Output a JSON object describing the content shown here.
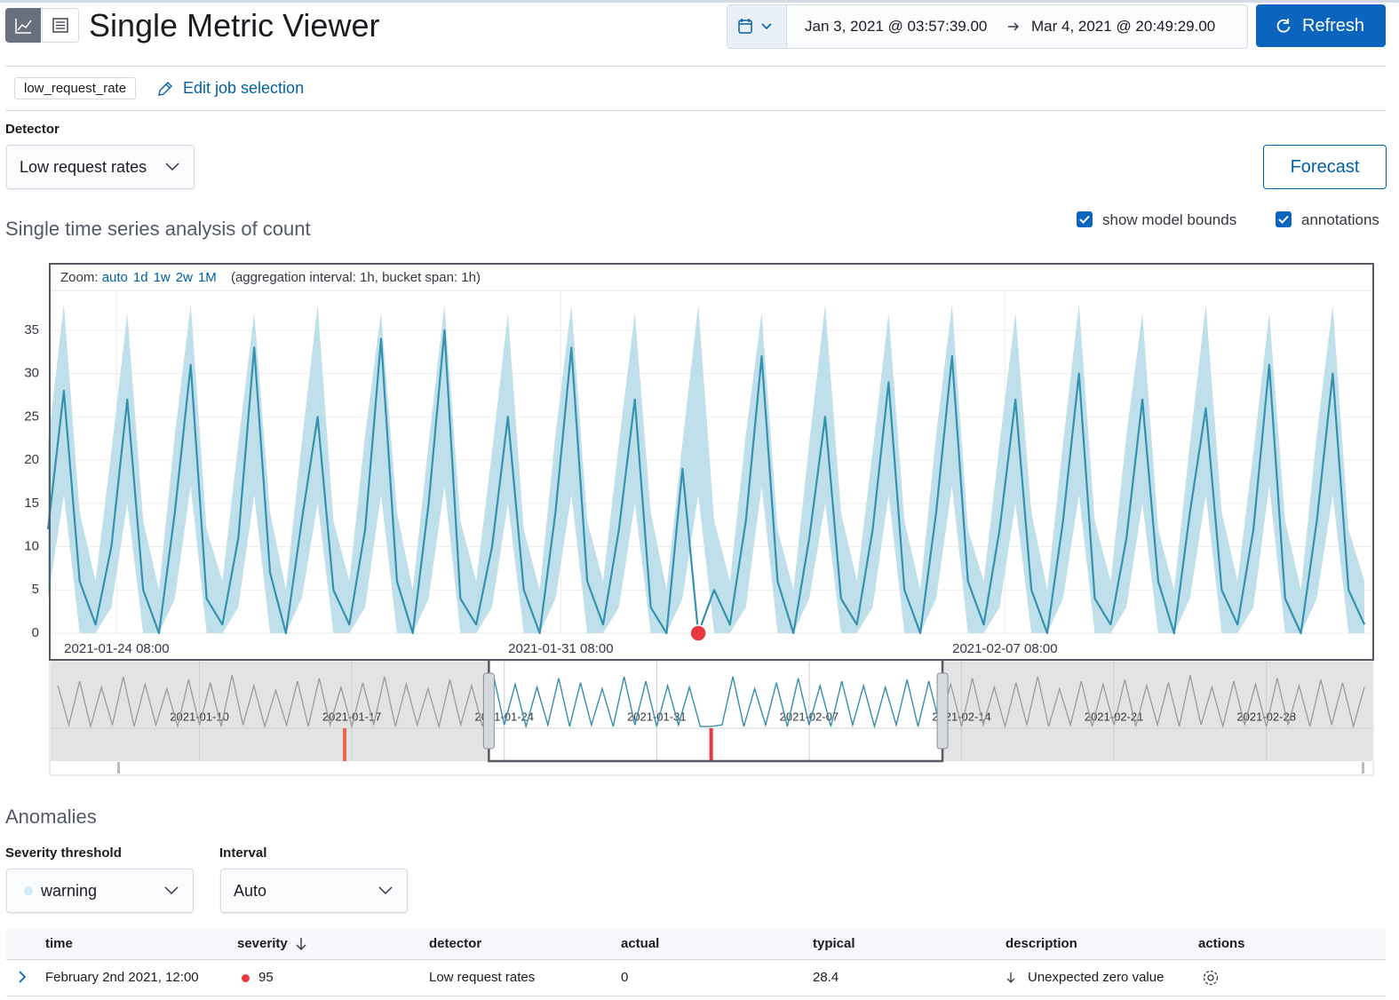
{
  "header": {
    "title": "Single Metric Viewer",
    "time_from": "Jan 3, 2021 @ 03:57:39.00",
    "time_to": "Mar 4, 2021 @ 20:49:29.00",
    "refresh": "Refresh"
  },
  "job": {
    "id": "low_request_rate",
    "edit": "Edit job selection"
  },
  "detector": {
    "label": "Detector",
    "value": "Low request rates"
  },
  "forecast": "Forecast",
  "chart_section": {
    "title": "Single time series analysis of count",
    "toggles": [
      {
        "label": "show model bounds",
        "checked": true
      },
      {
        "label": "annotations",
        "checked": true
      }
    ]
  },
  "zoom": {
    "label": "Zoom:",
    "options": [
      "auto",
      "1d",
      "1w",
      "2w",
      "1M"
    ],
    "note": "(aggregation interval: 1h, bucket span: 1h)"
  },
  "chart_data": [
    {
      "type": "line",
      "x": [
        "2021-01-23 06:00",
        "2021-01-23 12:00",
        "2021-01-23 18:00",
        "2021-01-24 00:00",
        "2021-01-24 06:00",
        "2021-01-24 12:00",
        "2021-01-24 18:00",
        "2021-01-25 00:00",
        "2021-01-25 06:00",
        "2021-01-25 12:00",
        "2021-01-25 18:00",
        "2021-01-26 00:00",
        "2021-01-26 06:00",
        "2021-01-26 12:00",
        "2021-01-26 18:00",
        "2021-01-27 00:00",
        "2021-01-27 06:00",
        "2021-01-27 12:00",
        "2021-01-27 18:00",
        "2021-01-28 00:00",
        "2021-01-28 06:00",
        "2021-01-28 12:00",
        "2021-01-28 18:00",
        "2021-01-29 00:00",
        "2021-01-29 06:00",
        "2021-01-29 12:00",
        "2021-01-29 18:00",
        "2021-01-30 00:00",
        "2021-01-30 06:00",
        "2021-01-30 12:00",
        "2021-01-30 18:00",
        "2021-01-31 00:00",
        "2021-01-31 06:00",
        "2021-01-31 12:00",
        "2021-01-31 18:00",
        "2021-02-01 00:00",
        "2021-02-01 06:00",
        "2021-02-01 12:00",
        "2021-02-01 18:00",
        "2021-02-02 00:00",
        "2021-02-02 06:00",
        "2021-02-02 12:00",
        "2021-02-02 18:00",
        "2021-02-03 00:00",
        "2021-02-03 06:00",
        "2021-02-03 12:00",
        "2021-02-03 18:00",
        "2021-02-04 00:00",
        "2021-02-04 06:00",
        "2021-02-04 12:00",
        "2021-02-04 18:00",
        "2021-02-05 00:00",
        "2021-02-05 06:00",
        "2021-02-05 12:00",
        "2021-02-05 18:00",
        "2021-02-06 00:00",
        "2021-02-06 06:00",
        "2021-02-06 12:00",
        "2021-02-06 18:00",
        "2021-02-07 00:00",
        "2021-02-07 06:00",
        "2021-02-07 12:00",
        "2021-02-07 18:00",
        "2021-02-08 00:00",
        "2021-02-08 06:00",
        "2021-02-08 12:00",
        "2021-02-08 18:00",
        "2021-02-09 00:00",
        "2021-02-09 06:00",
        "2021-02-09 12:00",
        "2021-02-09 18:00",
        "2021-02-10 00:00",
        "2021-02-10 06:00",
        "2021-02-10 12:00",
        "2021-02-10 18:00",
        "2021-02-11 00:00",
        "2021-02-11 06:00",
        "2021-02-11 12:00",
        "2021-02-11 18:00",
        "2021-02-12 00:00",
        "2021-02-12 06:00",
        "2021-02-12 12:00",
        "2021-02-12 18:00",
        "2021-02-13 00:00"
      ],
      "series": [
        {
          "color": "#3591b0",
          "bounds_color": "#bfe0ea",
          "values": [
            12,
            28,
            6,
            1,
            10,
            27,
            5,
            0,
            14,
            31,
            4,
            1,
            11,
            33,
            7,
            0,
            13,
            25,
            5,
            1,
            12,
            34,
            6,
            0,
            15,
            35,
            4,
            1,
            10,
            25,
            5,
            0,
            14,
            33,
            6,
            1,
            12,
            27,
            3,
            0,
            19,
            0,
            5,
            1,
            13,
            32,
            6,
            0,
            11,
            25,
            4,
            1,
            12,
            29,
            5,
            0,
            14,
            32,
            6,
            1,
            12,
            27,
            5,
            0,
            13,
            30,
            4,
            1,
            11,
            27,
            6,
            0,
            14,
            26,
            5,
            1,
            12,
            31,
            4,
            0,
            13,
            30,
            5,
            1
          ],
          "upper": [
            22,
            38,
            14,
            6,
            21,
            37,
            13,
            5,
            23,
            38,
            12,
            6,
            22,
            37,
            14,
            5,
            22,
            38,
            13,
            6,
            23,
            37,
            14,
            5,
            22,
            38,
            13,
            6,
            21,
            37,
            12,
            5,
            23,
            38,
            13,
            6,
            22,
            37,
            14,
            5,
            22,
            38,
            13,
            6,
            23,
            37,
            12,
            5,
            22,
            38,
            14,
            6,
            21,
            37,
            13,
            5,
            23,
            38,
            12,
            6,
            22,
            37,
            14,
            5,
            22,
            38,
            13,
            6,
            23,
            37,
            12,
            5,
            22,
            38,
            14,
            6,
            21,
            37,
            13,
            5,
            23,
            38,
            12,
            6
          ],
          "lower": [
            4,
            16,
            0,
            0,
            3,
            15,
            0,
            0,
            4,
            17,
            0,
            0,
            3,
            16,
            0,
            0,
            4,
            15,
            0,
            0,
            3,
            16,
            0,
            0,
            4,
            17,
            0,
            0,
            3,
            15,
            0,
            0,
            4,
            16,
            0,
            0,
            3,
            15,
            0,
            0,
            4,
            16,
            0,
            0,
            3,
            17,
            0,
            0,
            4,
            15,
            0,
            0,
            3,
            16,
            0,
            0,
            4,
            17,
            0,
            0,
            3,
            15,
            0,
            0,
            4,
            16,
            0,
            0,
            3,
            15,
            0,
            0,
            4,
            16,
            0,
            0,
            3,
            17,
            0,
            0,
            4,
            16,
            0,
            0
          ]
        }
      ],
      "anomalies": [
        {
          "x": "2021-02-02 12:00",
          "value": 0,
          "color": "#e7393f"
        }
      ],
      "xlim": [
        "2021-01-23 07:00",
        "2021-02-13 03:00"
      ],
      "xticks": [
        "2021-01-24 08:00",
        "2021-01-31 08:00",
        "2021-02-07 08:00"
      ],
      "ylim": [
        0,
        39.5
      ],
      "yticks": [
        0,
        5,
        10,
        15,
        20,
        25,
        30,
        35
      ],
      "grid": true
    },
    {
      "type": "line",
      "x": [
        "2021-01-03 12:00",
        "2021-01-04 00:00",
        "2021-01-04 12:00",
        "2021-01-05 00:00",
        "2021-01-05 12:00",
        "2021-01-06 00:00",
        "2021-01-06 12:00",
        "2021-01-07 00:00",
        "2021-01-07 12:00",
        "2021-01-08 00:00",
        "2021-01-08 12:00",
        "2021-01-09 00:00",
        "2021-01-09 12:00",
        "2021-01-10 00:00",
        "2021-01-10 12:00",
        "2021-01-11 00:00",
        "2021-01-11 12:00",
        "2021-01-12 00:00",
        "2021-01-12 12:00",
        "2021-01-13 00:00",
        "2021-01-13 12:00",
        "2021-01-14 00:00",
        "2021-01-14 12:00",
        "2021-01-15 00:00",
        "2021-01-15 12:00",
        "2021-01-16 00:00",
        "2021-01-16 12:00",
        "2021-01-17 00:00",
        "2021-01-17 12:00",
        "2021-01-18 00:00",
        "2021-01-18 12:00",
        "2021-01-19 00:00",
        "2021-01-19 12:00",
        "2021-01-20 00:00",
        "2021-01-20 12:00",
        "2021-01-21 00:00",
        "2021-01-21 12:00",
        "2021-01-22 00:00",
        "2021-01-22 12:00",
        "2021-01-23 00:00",
        "2021-01-23 12:00",
        "2021-01-24 00:00",
        "2021-01-24 12:00",
        "2021-01-25 00:00",
        "2021-01-25 12:00",
        "2021-01-26 00:00",
        "2021-01-26 12:00",
        "2021-01-27 00:00",
        "2021-01-27 12:00",
        "2021-01-28 00:00",
        "2021-01-28 12:00",
        "2021-01-29 00:00",
        "2021-01-29 12:00",
        "2021-01-30 00:00",
        "2021-01-30 12:00",
        "2021-01-31 00:00",
        "2021-01-31 12:00",
        "2021-02-01 00:00",
        "2021-02-01 12:00",
        "2021-02-02 00:00",
        "2021-02-02 12:00",
        "2021-02-03 00:00",
        "2021-02-03 12:00",
        "2021-02-04 00:00",
        "2021-02-04 12:00",
        "2021-02-05 00:00",
        "2021-02-05 12:00",
        "2021-02-06 00:00",
        "2021-02-06 12:00",
        "2021-02-07 00:00",
        "2021-02-07 12:00",
        "2021-02-08 00:00",
        "2021-02-08 12:00",
        "2021-02-09 00:00",
        "2021-02-09 12:00",
        "2021-02-10 00:00",
        "2021-02-10 12:00",
        "2021-02-11 00:00",
        "2021-02-11 12:00",
        "2021-02-12 00:00",
        "2021-02-12 12:00",
        "2021-02-13 00:00",
        "2021-02-13 12:00",
        "2021-02-14 00:00",
        "2021-02-14 12:00",
        "2021-02-15 00:00",
        "2021-02-15 12:00",
        "2021-02-16 00:00",
        "2021-02-16 12:00",
        "2021-02-17 00:00",
        "2021-02-17 12:00",
        "2021-02-18 00:00",
        "2021-02-18 12:00",
        "2021-02-19 00:00",
        "2021-02-19 12:00",
        "2021-02-20 00:00",
        "2021-02-20 12:00",
        "2021-02-21 00:00",
        "2021-02-21 12:00",
        "2021-02-22 00:00",
        "2021-02-22 12:00",
        "2021-02-23 00:00",
        "2021-02-23 12:00",
        "2021-02-24 00:00",
        "2021-02-24 12:00",
        "2021-02-25 00:00",
        "2021-02-25 12:00",
        "2021-02-26 00:00",
        "2021-02-26 12:00",
        "2021-02-27 00:00",
        "2021-02-27 12:00",
        "2021-02-28 00:00",
        "2021-02-28 12:00",
        "2021-03-01 00:00",
        "2021-03-01 12:00",
        "2021-03-02 00:00",
        "2021-03-02 12:00",
        "2021-03-03 00:00",
        "2021-03-03 12:00",
        "2021-03-04 00:00",
        "2021-03-04 12:00"
      ],
      "values": [
        27,
        1,
        30,
        0,
        26,
        1,
        33,
        0,
        28,
        1,
        25,
        0,
        31,
        1,
        29,
        0,
        34,
        1,
        27,
        0,
        24,
        1,
        30,
        0,
        32,
        1,
        26,
        0,
        29,
        1,
        33,
        0,
        28,
        1,
        25,
        0,
        31,
        1,
        27,
        0,
        34,
        1,
        28,
        0,
        26,
        1,
        32,
        0,
        29,
        1,
        25,
        0,
        33,
        1,
        30,
        0,
        27,
        1,
        26,
        0,
        0,
        1,
        33,
        0,
        25,
        1,
        29,
        0,
        32,
        1,
        27,
        0,
        30,
        1,
        27,
        0,
        26,
        1,
        31,
        0,
        30,
        1,
        28,
        0,
        32,
        1,
        26,
        0,
        29,
        1,
        33,
        0,
        25,
        1,
        30,
        0,
        28,
        1,
        31,
        0,
        27,
        1,
        29,
        0,
        34,
        1,
        26,
        0,
        30,
        1,
        28,
        0,
        32,
        1,
        27,
        0,
        31,
        1,
        29,
        0,
        26
      ],
      "color": "#9b9b9b",
      "selection_color": "#3591b0",
      "markers": [
        {
          "x": "2021-01-16 16:00",
          "color": "#e7664c"
        },
        {
          "x": "2021-02-02 12:00",
          "color": "#e7393f"
        }
      ],
      "xlim": [
        "2021-01-03 03:57",
        "2021-03-04 20:49"
      ],
      "xticks": [
        "2021-01-10",
        "2021-01-17",
        "2021-01-24",
        "2021-01-31",
        "2021-02-07",
        "2021-02-14",
        "2021-02-21",
        "2021-02-28"
      ],
      "ylim": [
        0,
        40
      ]
    }
  ],
  "anomalies": {
    "title": "Anomalies",
    "severity": {
      "label": "Severity threshold",
      "value": "warning"
    },
    "interval": {
      "label": "Interval",
      "value": "Auto"
    },
    "columns": [
      "time",
      "severity",
      "detector",
      "actual",
      "typical",
      "description",
      "actions"
    ],
    "rows": [
      [
        "February 2nd 2021, 12:00",
        95,
        "Low request rates",
        0,
        28.4,
        "Unexpected zero value"
      ]
    ]
  }
}
